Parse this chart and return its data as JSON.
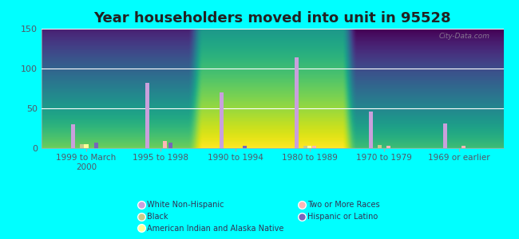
{
  "title": "Year householders moved into unit in 95528",
  "categories": [
    "1999 to March\n2000",
    "1995 to 1998",
    "1990 to 1994",
    "1980 to 1989",
    "1970 to 1979",
    "1969 or earlier"
  ],
  "series": {
    "White Non-Hispanic": [
      30,
      82,
      70,
      114,
      46,
      31
    ],
    "Black": [
      5,
      0,
      0,
      3,
      4,
      0
    ],
    "American Indian and Alaska Native": [
      5,
      0,
      0,
      3,
      0,
      0
    ],
    "Two or More Races": [
      0,
      9,
      0,
      3,
      3,
      3
    ],
    "Hispanic or Latino": [
      7,
      7,
      3,
      0,
      0,
      0
    ]
  },
  "colors": {
    "White Non-Hispanic": "#c9a0dc",
    "Black": "#c8cc8a",
    "American Indian and Alaska Native": "#ffff99",
    "Two or More Races": "#ffb6b6",
    "Hispanic or Latino": "#7766bb"
  },
  "offsets": {
    "White Non-Hispanic": -0.18,
    "Black": -0.06,
    "American Indian and Alaska Native": 0.0,
    "Two or More Races": 0.06,
    "Hispanic or Latino": 0.13
  },
  "bar_width": 0.055,
  "ylim": [
    0,
    150
  ],
  "yticks": [
    0,
    50,
    100,
    150
  ],
  "bg_color_top": "#c8e6c0",
  "bg_color_bottom": "#e8f8e0",
  "outer_bg": "#00ffff",
  "watermark": "City-Data.com",
  "title_fontsize": 13,
  "tick_fontsize": 7.5,
  "legend_order": [
    "White Non-Hispanic",
    "Black",
    "American Indian and Alaska Native",
    "Two or More Races",
    "Hispanic or Latino"
  ]
}
